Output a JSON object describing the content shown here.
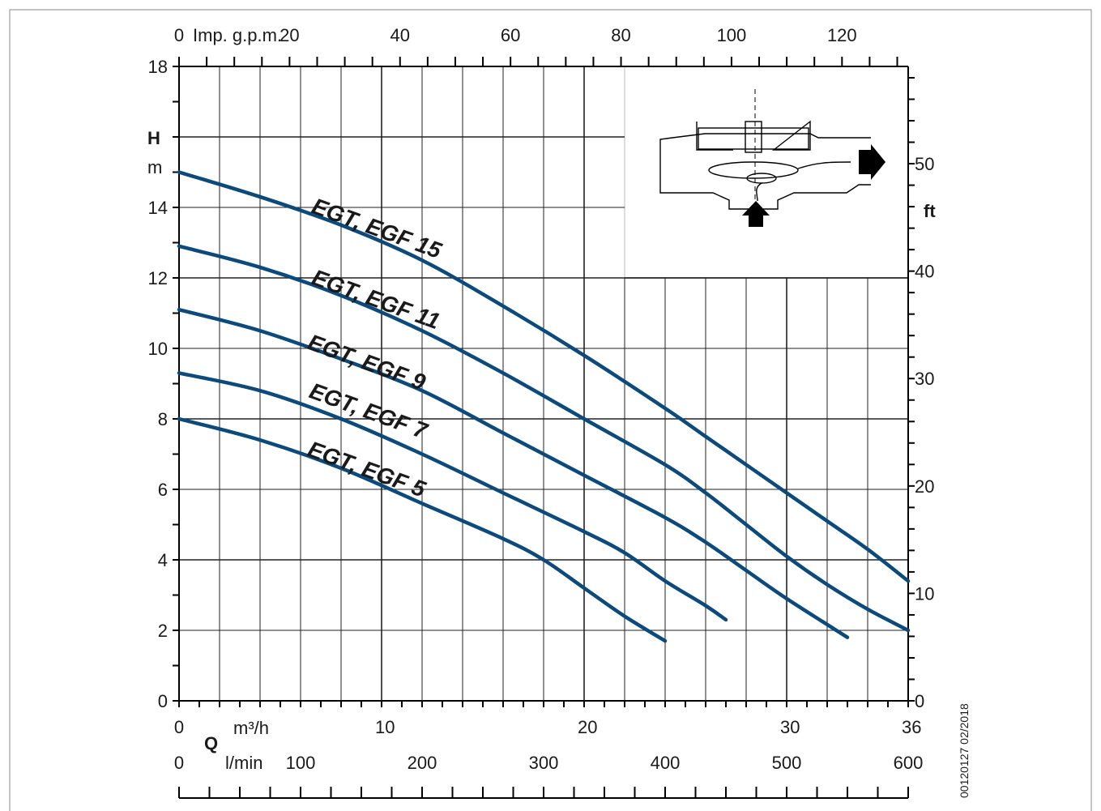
{
  "chart_data": {
    "type": "line",
    "title": "",
    "x_primary": {
      "unit_label": "m³/h",
      "range": [
        0,
        36
      ],
      "ticks": [
        0,
        10,
        20,
        30,
        36
      ]
    },
    "x_secondary": {
      "unit_label": "l/min",
      "range": [
        0,
        600
      ],
      "ticks": [
        0,
        100,
        200,
        300,
        400,
        500,
        600
      ]
    },
    "x_top": {
      "unit_label": "Imp. g.p.m.",
      "ticks": [
        0,
        20,
        40,
        60,
        80,
        100,
        120
      ]
    },
    "q_symbol": "Q",
    "y_primary": {
      "symbol": "H",
      "unit_label": "m",
      "range": [
        0,
        18
      ],
      "ticks": [
        0,
        2,
        4,
        6,
        8,
        10,
        12,
        14,
        18
      ]
    },
    "y_secondary": {
      "unit_label": "ft",
      "ticks": [
        0,
        10,
        20,
        30,
        40,
        50
      ]
    },
    "grid": true,
    "series": [
      {
        "name": "EGT, EGF 15",
        "points": [
          [
            0,
            15.0
          ],
          [
            4,
            14.3
          ],
          [
            8,
            13.5
          ],
          [
            12,
            12.5
          ],
          [
            16,
            11.2
          ],
          [
            20,
            9.8
          ],
          [
            24,
            8.3
          ],
          [
            26,
            7.5
          ],
          [
            28,
            6.7
          ],
          [
            30,
            5.9
          ],
          [
            32,
            5.1
          ],
          [
            34,
            4.3
          ],
          [
            36,
            3.4
          ]
        ]
      },
      {
        "name": "EGT, EGF 11",
        "points": [
          [
            0,
            12.9
          ],
          [
            4,
            12.3
          ],
          [
            8,
            11.5
          ],
          [
            12,
            10.5
          ],
          [
            16,
            9.3
          ],
          [
            20,
            8.0
          ],
          [
            24,
            6.7
          ],
          [
            26,
            5.9
          ],
          [
            28,
            5.0
          ],
          [
            30,
            4.1
          ],
          [
            32,
            3.3
          ],
          [
            34,
            2.6
          ],
          [
            36,
            2.0
          ]
        ]
      },
      {
        "name": "EGT, EGF 9",
        "points": [
          [
            0,
            11.1
          ],
          [
            4,
            10.5
          ],
          [
            8,
            9.7
          ],
          [
            12,
            8.8
          ],
          [
            16,
            7.6
          ],
          [
            20,
            6.4
          ],
          [
            24,
            5.2
          ],
          [
            26,
            4.5
          ],
          [
            28,
            3.7
          ],
          [
            30,
            2.9
          ],
          [
            33,
            1.8
          ]
        ]
      },
      {
        "name": "EGT, EGF 7",
        "points": [
          [
            0,
            9.3
          ],
          [
            4,
            8.8
          ],
          [
            8,
            8.0
          ],
          [
            12,
            7.0
          ],
          [
            16,
            5.9
          ],
          [
            20,
            4.8
          ],
          [
            22,
            4.2
          ],
          [
            24,
            3.4
          ],
          [
            26,
            2.7
          ],
          [
            27,
            2.3
          ]
        ]
      },
      {
        "name": "EGT, EGF 5",
        "points": [
          [
            0,
            8.0
          ],
          [
            4,
            7.4
          ],
          [
            8,
            6.6
          ],
          [
            12,
            5.6
          ],
          [
            16,
            4.6
          ],
          [
            18,
            4.0
          ],
          [
            20,
            3.2
          ],
          [
            22,
            2.4
          ],
          [
            24,
            1.7
          ]
        ]
      }
    ],
    "inset": "pump-cross-section-diagram"
  },
  "image_code": "00120127 02/2018",
  "colors": {
    "curve": "#0b4a7a",
    "grid": "#222222",
    "arrow": "#000000"
  }
}
